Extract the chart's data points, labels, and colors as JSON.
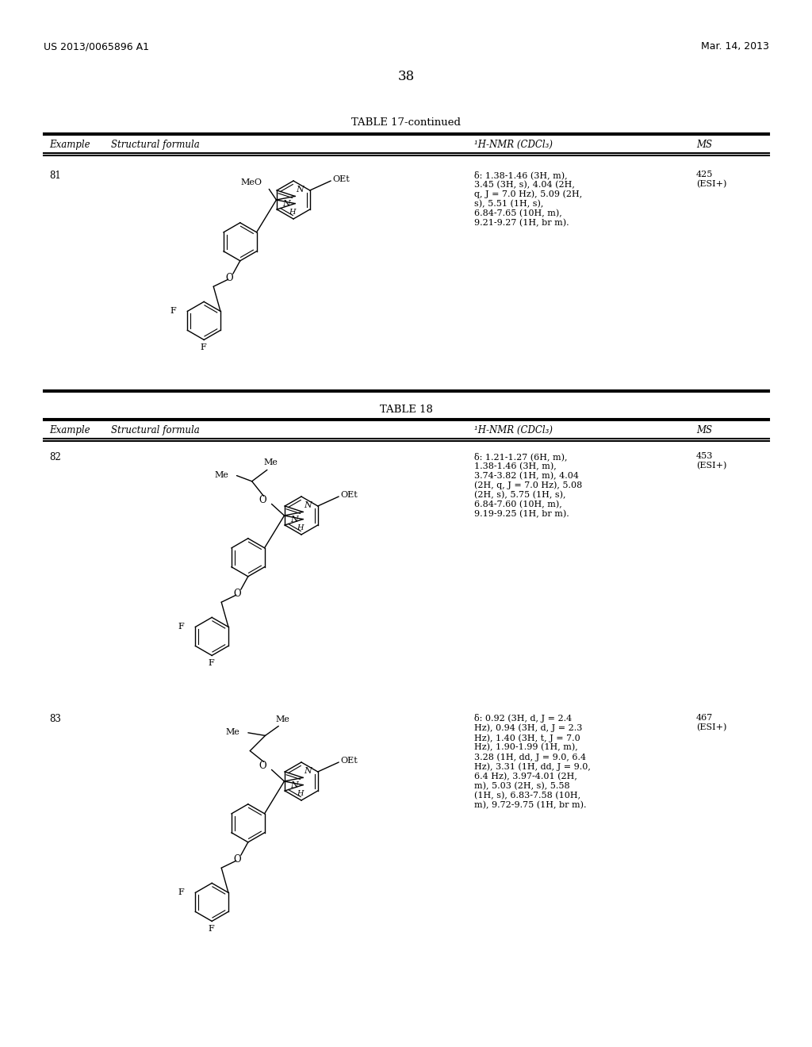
{
  "background_color": "#ffffff",
  "page_number": "38",
  "header_left": "US 2013/0065896 A1",
  "header_right": "Mar. 14, 2013",
  "table17_continued_title": "TABLE 17-continued",
  "table18_title": "TABLE 18",
  "example81": {
    "number": "81",
    "nmr": "δ: 1.38-1.46 (3H, m),\n3.45 (3H, s), 4.04 (2H,\nq, J = 7.0 Hz), 5.09 (2H,\ns), 5.51 (1H, s),\n6.84-7.65 (10H, m),\n9.21-9.27 (1H, br m).",
    "ms": "425\n(ESI+)"
  },
  "example82": {
    "number": "82",
    "nmr": "δ: 1.21-1.27 (6H, m),\n1.38-1.46 (3H, m),\n3.74-3.82 (1H, m), 4.04\n(2H, q, J = 7.0 Hz), 5.08\n(2H, s), 5.75 (1H, s),\n6.84-7.60 (10H, m),\n9.19-9.25 (1H, br m).",
    "ms": "453\n(ESI+)"
  },
  "example83": {
    "number": "83",
    "nmr": "δ: 0.92 (3H, d, J = 2.4\nHz), 0.94 (3H, d, J = 2.3\nHz), 1.40 (3H, t, J = 7.0\nHz), 1.90-1.99 (1H, m),\n3.28 (1H, dd, J = 9.0, 6.4\nHz), 3.31 (1H, dd, J = 9.0,\n6.4 Hz), 3.97-4.01 (2H,\nm), 5.03 (2H, s), 5.58\n(1H, s), 6.83-7.58 (10H,\nm), 9.72-9.75 (1H, br m).",
    "ms": "467\n(ESI+)"
  }
}
